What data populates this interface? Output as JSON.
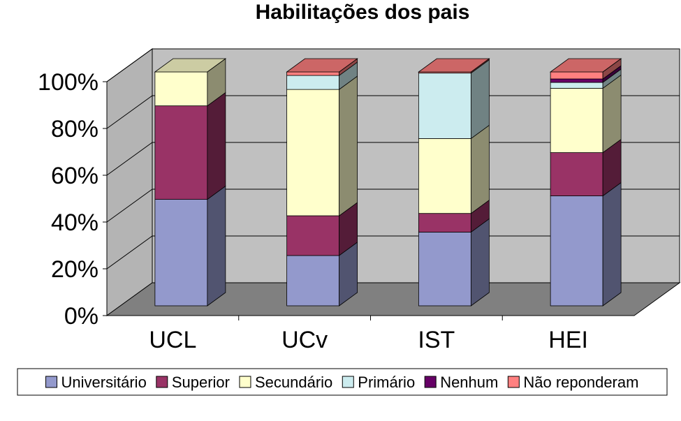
{
  "chart_data": {
    "type": "bar",
    "stacked": "percent",
    "three_d": true,
    "title": "Habilitações dos pais",
    "categories": [
      "UCL",
      "UCv",
      "IST",
      "HEI"
    ],
    "y_ticks": [
      "0%",
      "20%",
      "40%",
      "60%",
      "80%",
      "100%"
    ],
    "ylim": [
      0,
      100
    ],
    "grid": true,
    "legend_position": "bottom",
    "series": [
      {
        "name": "Universitário",
        "color": "#9399CC",
        "values": [
          45.5,
          21.5,
          31.5,
          47.0
        ]
      },
      {
        "name": "Superior",
        "color": "#993366",
        "values": [
          40.0,
          17.0,
          8.0,
          18.5
        ]
      },
      {
        "name": "Secundário",
        "color": "#FFFFCC",
        "values": [
          14.5,
          54.0,
          32.0,
          27.5
        ]
      },
      {
        "name": "Primário",
        "color": "#CCECEF",
        "values": [
          0.0,
          6.0,
          28.0,
          2.5
        ]
      },
      {
        "name": "Nenhum",
        "color": "#660066",
        "values": [
          0.0,
          0.0,
          0.0,
          1.5
        ]
      },
      {
        "name": "Não reponderam",
        "color": "#FF8080",
        "values": [
          0.0,
          1.5,
          0.5,
          3.0
        ]
      }
    ]
  }
}
